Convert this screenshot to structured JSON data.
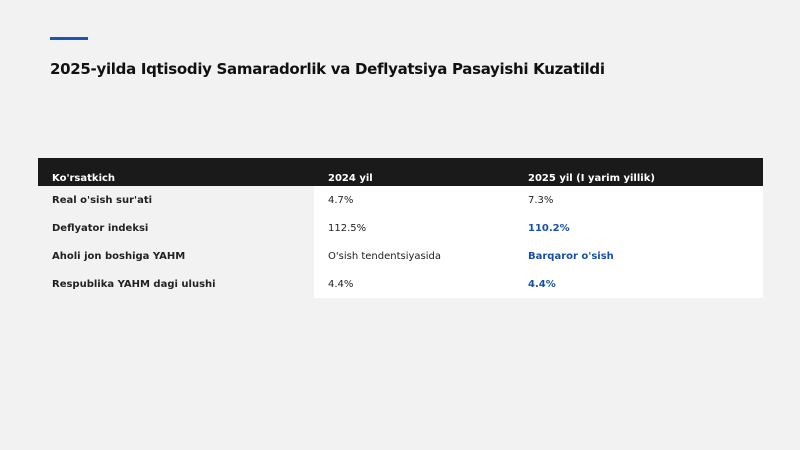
{
  "header": {
    "title": "2025-yilda Iqtisodiy Samaradorlik va Deflyatsiya Pasayishi Kuzatildi"
  },
  "table": {
    "columns": [
      "Ko'rsatkich",
      "2024 yil",
      "2025 yil (I yarim yillik)"
    ],
    "rows": [
      [
        "Real o'sish sur'ati",
        "4.7%",
        "7.3%"
      ],
      [
        "Deflyator indeksi",
        "112.5%",
        "110.2%"
      ],
      [
        "Aholi jon boshiga YAHM",
        "O'sish tendentsiyasida",
        "Barqaror o'sish"
      ],
      [
        "Respublika YAHM dagi ulushi",
        "4.4%",
        "4.4%"
      ]
    ],
    "highlight": [
      false,
      true,
      true,
      true
    ]
  }
}
